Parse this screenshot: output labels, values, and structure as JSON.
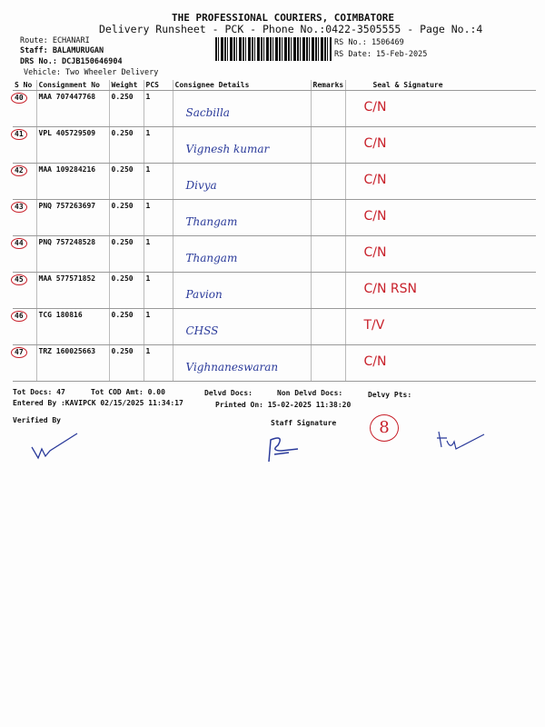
{
  "header": {
    "company": "THE PROFESSIONAL COURIERS, COIMBATORE",
    "subtitle": "Delivery Runsheet - PCK - Phone No.:0422-3505555 - Page No.:4",
    "route": "Route: ECHANARI",
    "staff": "Staff: BALAMURUGAN",
    "drs": "DRS No.: DCJB150646904",
    "vehicle": "Vehicle: Two Wheeler Delivery",
    "rs_no": "RS No.: 1506469",
    "rs_date": "RS Date: 15-Feb-2025"
  },
  "table": {
    "columns": [
      "S No",
      "Consignment No",
      "Weight",
      "PCS",
      "Consignee Details",
      "Remarks",
      "Seal & Signature"
    ],
    "rows": [
      {
        "sno": "40",
        "consignment": "MAA 707447768",
        "weight": "0.250",
        "pcs": "1",
        "consignee": "Sacbilla",
        "seal": "C/N"
      },
      {
        "sno": "41",
        "consignment": "VPL 405729509",
        "weight": "0.250",
        "pcs": "1",
        "consignee": "Vignesh kumar",
        "seal": "C/N"
      },
      {
        "sno": "42",
        "consignment": "MAA 109284216",
        "weight": "0.250",
        "pcs": "1",
        "consignee": "Divya",
        "seal": "C/N"
      },
      {
        "sno": "43",
        "consignment": "PNQ 757263697",
        "weight": "0.250",
        "pcs": "1",
        "consignee": "Thangam",
        "seal": "C/N"
      },
      {
        "sno": "44",
        "consignment": "PNQ 757248528",
        "weight": "0.250",
        "pcs": "1",
        "consignee": "Thangam",
        "seal": "C/N"
      },
      {
        "sno": "45",
        "consignment": "MAA 577571852",
        "weight": "0.250",
        "pcs": "1",
        "consignee": "Pavion",
        "seal": "C/N RSN"
      },
      {
        "sno": "46",
        "consignment": "TCG 180816",
        "weight": "0.250",
        "pcs": "1",
        "consignee": "CHSS",
        "seal": "T/V"
      },
      {
        "sno": "47",
        "consignment": "TRZ 160025663",
        "weight": "0.250",
        "pcs": "1",
        "consignee": "Vighnaneswaran",
        "seal": "C/N"
      }
    ]
  },
  "footer": {
    "tot_docs": "Tot Docs:  47",
    "tot_cod": "Tot COD Amt:    0.00",
    "delvd": "Delvd Docs:",
    "non_delvd": "Non Delvd Docs:",
    "delvy_pts": "Delvy Pts:",
    "entered_by": "Entered By :KAVIPCK 02/15/2025 11:34:17",
    "printed_on": "Printed On: 15-02-2025 11:38:20",
    "verified_by": "Verified By",
    "staff_signature": "Staff Signature",
    "circled_count": "8"
  }
}
